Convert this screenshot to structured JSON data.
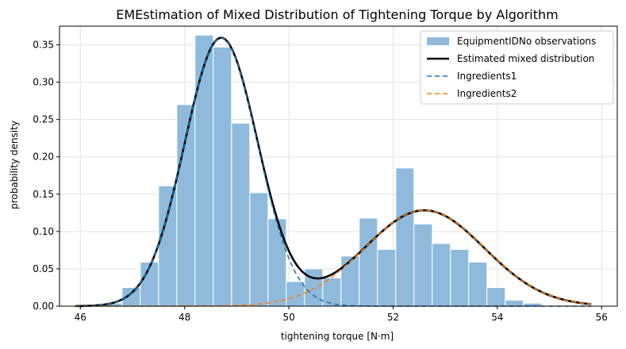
{
  "chart_data": {
    "type": "bar",
    "title": "EMEstimation of Mixed Distribution of Tightening Torque by Algorithm",
    "xlabel": "tightening torque [N·m]",
    "ylabel": "probability density",
    "xlim": [
      45.6,
      56.3
    ],
    "ylim": [
      0,
      0.375
    ],
    "xticks": [
      46,
      48,
      50,
      52,
      54,
      56
    ],
    "yticks": [
      0.0,
      0.05,
      0.1,
      0.15,
      0.2,
      0.25,
      0.3,
      0.35
    ],
    "grid": true,
    "legend_position": "top-right",
    "histogram": {
      "name": "EquipmentIDNo observations",
      "color": "#8fbadc",
      "bin_edges": [
        46.45,
        46.8,
        47.15,
        47.5,
        47.85,
        48.2,
        48.55,
        48.9,
        49.25,
        49.6,
        49.95,
        50.3,
        50.65,
        51.0,
        51.35,
        51.7,
        52.05,
        52.4,
        52.75,
        53.1,
        53.45,
        53.8,
        54.15,
        54.5,
        54.85
      ],
      "densities": [
        0.004,
        0.025,
        0.059,
        0.161,
        0.27,
        0.363,
        0.347,
        0.245,
        0.152,
        0.117,
        0.033,
        0.05,
        0.038,
        0.067,
        0.118,
        0.076,
        0.185,
        0.11,
        0.084,
        0.076,
        0.059,
        0.025,
        0.008,
        0.004
      ]
    },
    "series": [
      {
        "name": "Estimated mixed distribution",
        "style": "solid",
        "color": "#000000",
        "x_range": [
          45.9,
          55.8
        ]
      },
      {
        "name": "Ingredients1",
        "style": "dashed",
        "color": "#1f77b4",
        "weight": 0.63,
        "mean": 48.7,
        "sd": 0.7,
        "x_range": [
          45.9,
          55.8
        ]
      },
      {
        "name": "Ingredients2",
        "style": "dashed",
        "color": "#ff7f0e",
        "weight": 0.37,
        "mean": 52.6,
        "sd": 1.15,
        "x_range": [
          45.9,
          55.8
        ]
      }
    ]
  }
}
